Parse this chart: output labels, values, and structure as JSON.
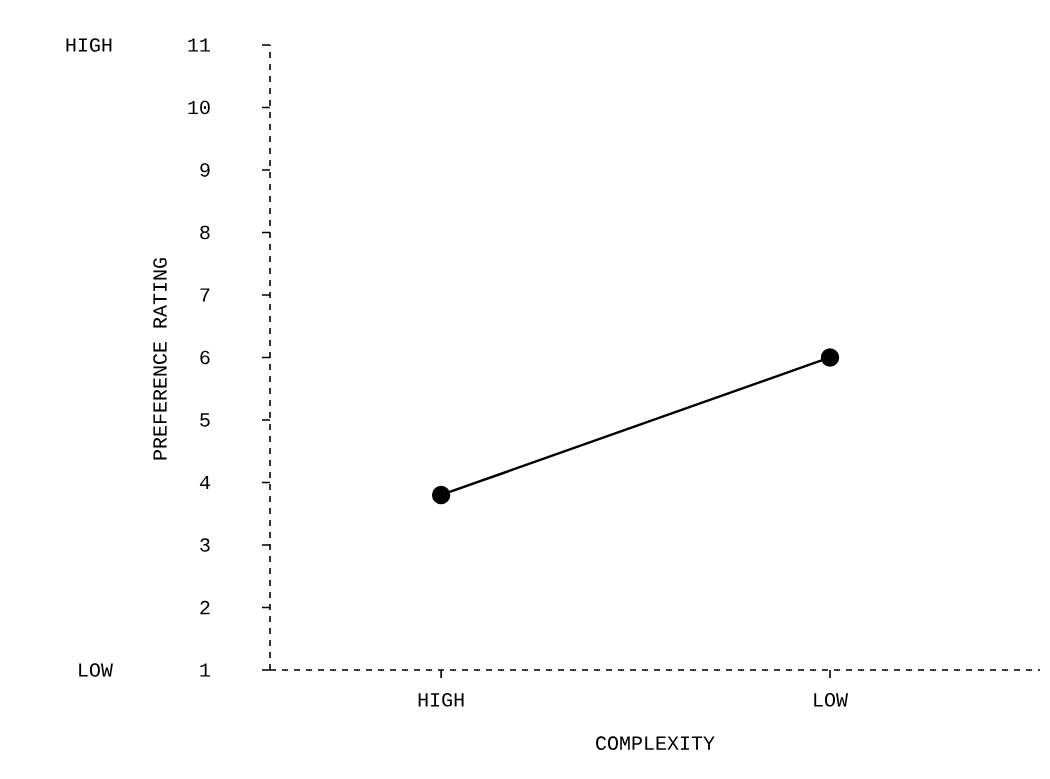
{
  "chart_data": {
    "type": "line",
    "xlabel": "COMPLEXITY",
    "ylabel": "PREFERENCE RATING",
    "categories": [
      "HIGH",
      "LOW"
    ],
    "values": [
      3.8,
      6.0
    ],
    "color": "#000000",
    "ylim": [
      1,
      11
    ],
    "yticks": [
      1,
      2,
      3,
      4,
      5,
      6,
      7,
      8,
      9,
      10,
      11
    ],
    "marker": "circle",
    "line_style": "solid",
    "grid": false,
    "annotations": [
      "HIGH",
      "LOW"
    ]
  }
}
